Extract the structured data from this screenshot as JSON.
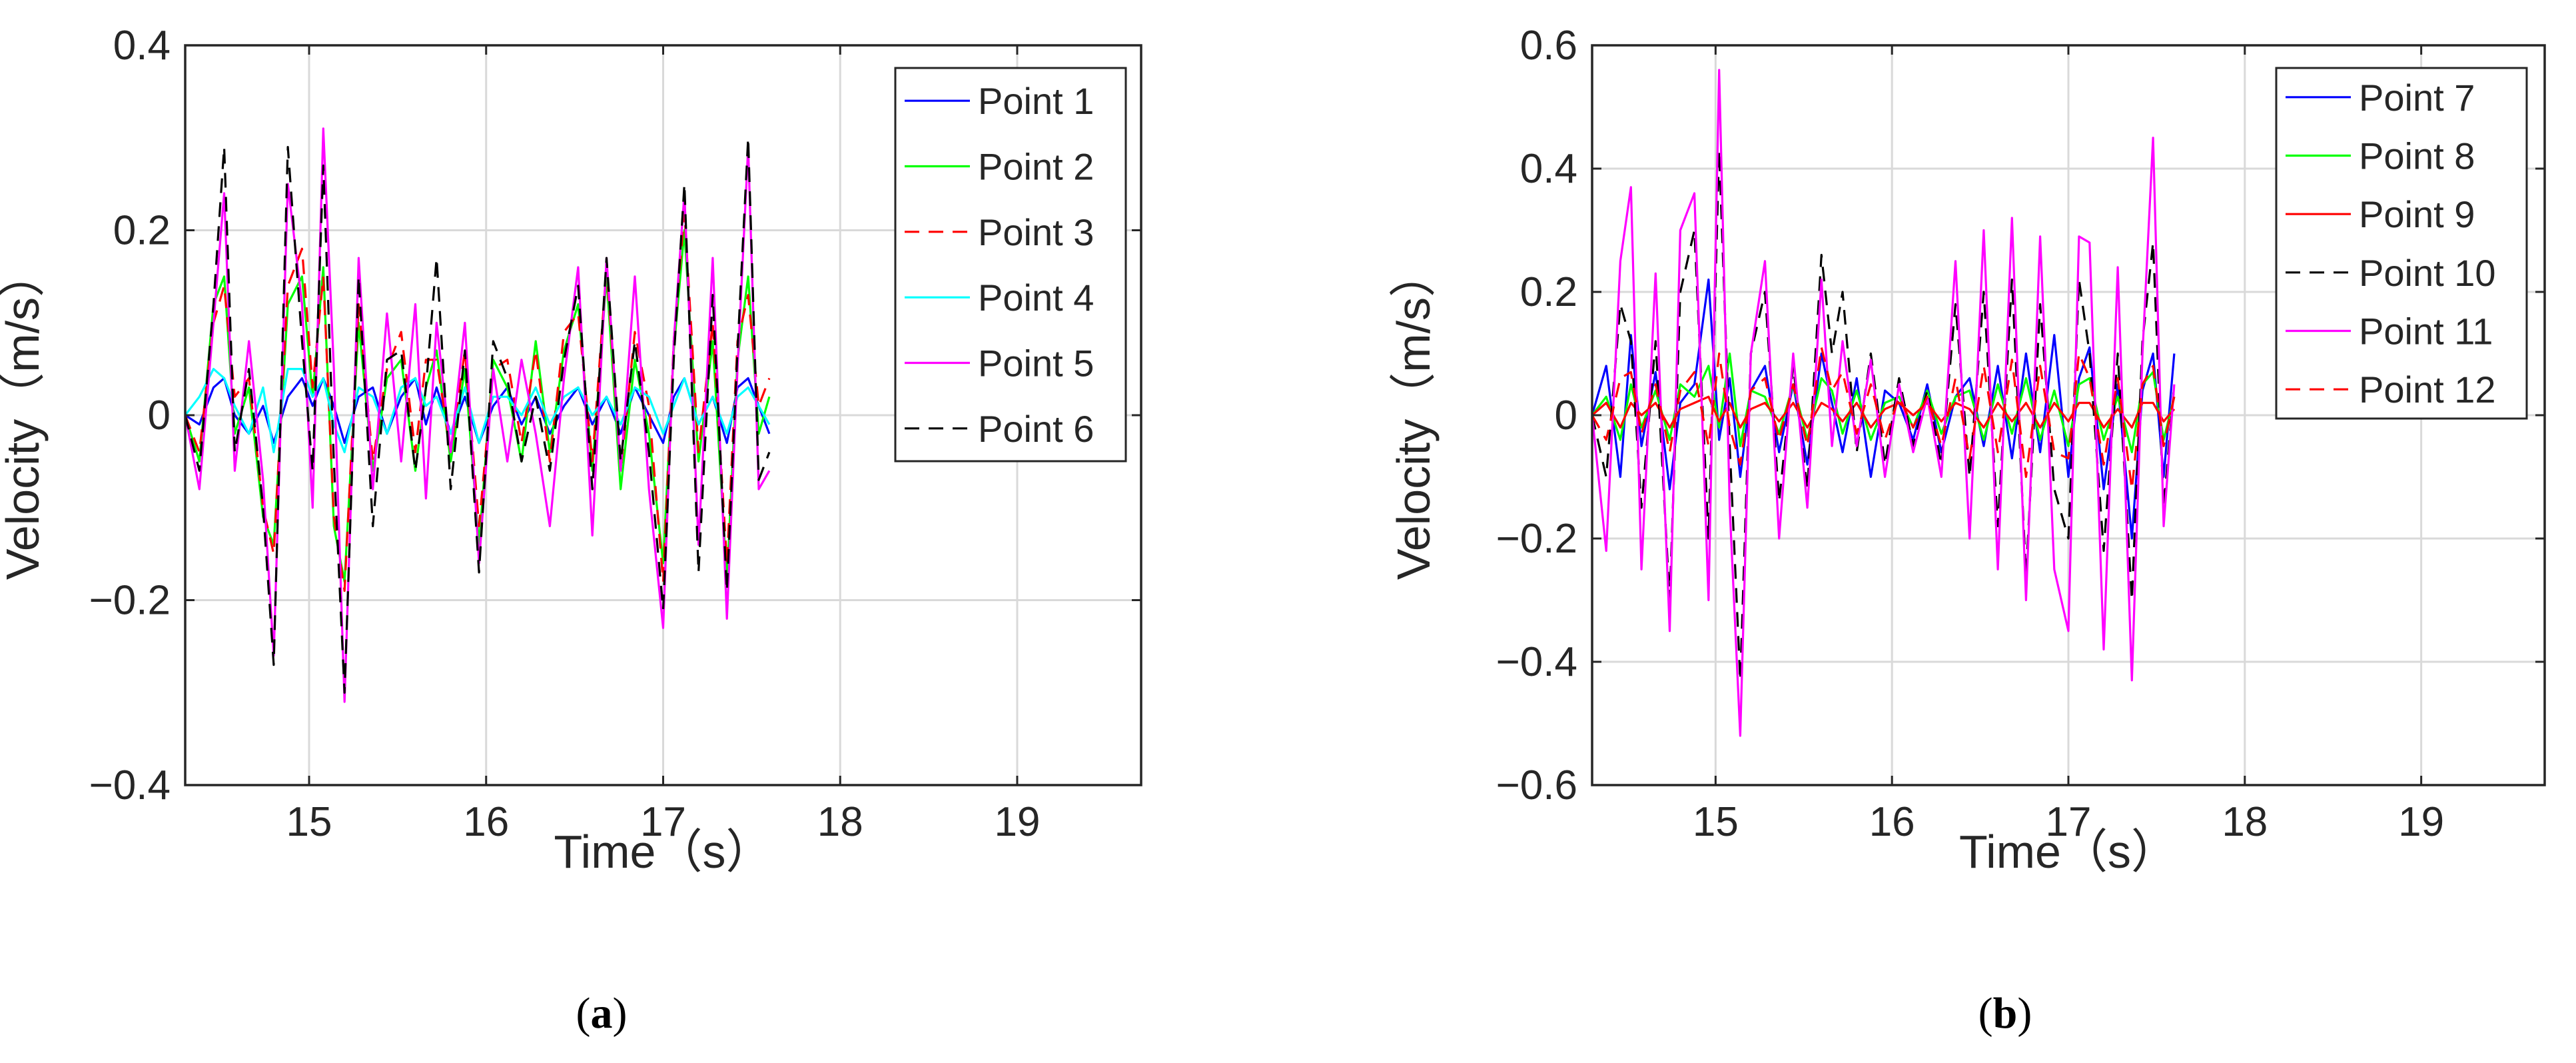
{
  "chart_data": [
    {
      "type": "line",
      "panel_label": "a",
      "xlabel": "Time（s）",
      "ylabel": "Velocity（m/s）",
      "xlim": [
        14.3,
        19.7
      ],
      "ylim": [
        -0.4,
        0.4
      ],
      "xticks": [
        "15",
        "16",
        "17",
        "18",
        "19"
      ],
      "xtick_values": [
        15,
        16,
        17,
        18,
        19
      ],
      "yticks": [
        "−0.4",
        "−0.2",
        "0",
        "0.2",
        "0.4"
      ],
      "ytick_values": [
        -0.4,
        -0.2,
        0,
        0.2,
        0.4
      ],
      "grid": true,
      "legend_position": "top-right",
      "x": [
        14.3,
        14.38,
        14.46,
        14.52,
        14.58,
        14.66,
        14.74,
        14.8,
        14.88,
        14.96,
        15.02,
        15.08,
        15.14,
        15.2,
        15.28,
        15.36,
        15.44,
        15.52,
        15.6,
        15.66,
        15.72,
        15.8,
        15.88,
        15.96,
        16.04,
        16.12,
        16.2,
        16.28,
        16.36,
        16.44,
        16.52,
        16.6,
        16.68,
        16.76,
        16.84,
        16.92,
        17.0,
        17.06,
        17.12,
        17.2,
        17.28,
        17.36,
        17.42,
        17.48,
        17.54,
        17.6
      ],
      "series": [
        {
          "name": "Point 1",
          "color": "#0000ff",
          "dash": "solid",
          "values": [
            0,
            -0.01,
            0.03,
            0.04,
            0,
            -0.02,
            0.01,
            -0.03,
            0.02,
            0.04,
            0.01,
            0.04,
            0.01,
            -0.03,
            0.02,
            0.03,
            -0.02,
            0.02,
            0.04,
            -0.01,
            0.03,
            -0.02,
            0.02,
            -0.03,
            0.01,
            0.03,
            -0.01,
            0.02,
            -0.02,
            0.01,
            0.03,
            -0.01,
            0.02,
            -0.02,
            0.03,
            0,
            -0.03,
            0.02,
            0.04,
            -0.01,
            0.02,
            -0.03,
            0.03,
            0.04,
            0.01,
            -0.02
          ]
        },
        {
          "name": "Point 2",
          "color": "#00ff00",
          "dash": "solid",
          "values": [
            0,
            -0.05,
            0.12,
            0.15,
            -0.02,
            0.03,
            -0.11,
            -0.14,
            0.12,
            0.15,
            0.02,
            0.16,
            -0.12,
            -0.18,
            0.1,
            -0.06,
            0.04,
            0.06,
            -0.06,
            0.03,
            0.07,
            -0.05,
            0.05,
            -0.14,
            0.06,
            0.03,
            -0.05,
            0.08,
            -0.04,
            0.07,
            0.12,
            -0.06,
            0.15,
            -0.08,
            0.06,
            -0.02,
            -0.16,
            0.07,
            0.2,
            -0.05,
            0.08,
            -0.18,
            0.06,
            0.15,
            -0.02,
            0.02
          ]
        },
        {
          "name": "Point 3",
          "color": "#ff0000",
          "dash": "dashed",
          "values": [
            0,
            -0.04,
            0.1,
            0.14,
            0.02,
            0.04,
            -0.1,
            -0.15,
            0.14,
            0.18,
            0.03,
            0.15,
            -0.11,
            -0.19,
            0.12,
            -0.05,
            0.05,
            0.09,
            -0.04,
            0.06,
            0.06,
            -0.04,
            0.07,
            -0.12,
            0.05,
            0.06,
            -0.03,
            0.07,
            -0.05,
            0.09,
            0.11,
            -0.05,
            0.16,
            -0.06,
            0.09,
            0.01,
            -0.18,
            0.08,
            0.22,
            -0.04,
            0.1,
            -0.16,
            0.08,
            0.13,
            0.01,
            0.04
          ]
        },
        {
          "name": "Point 4",
          "color": "#00ffff",
          "dash": "solid",
          "values": [
            0,
            0.02,
            0.05,
            0.04,
            0.01,
            -0.02,
            0.03,
            -0.04,
            0.05,
            0.05,
            0.02,
            0.04,
            -0.01,
            -0.04,
            0.03,
            0.02,
            -0.02,
            0.03,
            0.04,
            0.01,
            0.02,
            -0.02,
            0.03,
            -0.03,
            0.02,
            0.02,
            0,
            0.03,
            -0.01,
            0.02,
            0.03,
            0,
            0.02,
            -0.01,
            0.03,
            0.02,
            -0.02,
            0.01,
            0.04,
            -0.01,
            0.02,
            -0.02,
            0.02,
            0.03,
            0.01,
            -0.01
          ]
        },
        {
          "name": "Point 5",
          "color": "#ff00ff",
          "dash": "solid",
          "values": [
            0,
            -0.08,
            0.1,
            0.24,
            -0.06,
            0.08,
            -0.07,
            -0.26,
            0.25,
            0.12,
            -0.1,
            0.31,
            0.05,
            -0.31,
            0.17,
            -0.08,
            0.11,
            -0.05,
            0.12,
            -0.09,
            0.1,
            -0.04,
            0.1,
            -0.16,
            0.05,
            -0.05,
            0.06,
            -0.02,
            -0.12,
            0.04,
            0.16,
            -0.13,
            0.17,
            -0.06,
            0.15,
            -0.08,
            -0.23,
            0.08,
            0.24,
            -0.14,
            0.17,
            -0.22,
            0.05,
            0.29,
            -0.08,
            -0.06
          ]
        },
        {
          "name": "Point 6",
          "color": "#000000",
          "dash": "dashed",
          "values": [
            0,
            -0.06,
            0.12,
            0.29,
            -0.04,
            0.05,
            -0.1,
            -0.27,
            0.29,
            0.08,
            -0.06,
            0.27,
            -0.05,
            -0.3,
            0.15,
            -0.12,
            0.06,
            0.07,
            -0.06,
            0.03,
            0.17,
            -0.08,
            0.07,
            -0.17,
            0.08,
            0.04,
            -0.05,
            0.02,
            -0.06,
            0.06,
            0.14,
            -0.08,
            0.17,
            -0.05,
            0.08,
            -0.04,
            -0.21,
            0.06,
            0.25,
            -0.17,
            0.13,
            -0.19,
            0.07,
            0.3,
            -0.07,
            -0.04
          ]
        }
      ]
    },
    {
      "type": "line",
      "panel_label": "b",
      "xlabel": "Time（s）",
      "ylabel": "Velocity（m/s）",
      "xlim": [
        14.3,
        19.7
      ],
      "ylim": [
        -0.6,
        0.6
      ],
      "xticks": [
        "15",
        "16",
        "17",
        "18",
        "19"
      ],
      "xtick_values": [
        15,
        16,
        17,
        18,
        19
      ],
      "yticks": [
        "−0.6",
        "−0.4",
        "−0.2",
        "0",
        "0.2",
        "0.4",
        "0.6"
      ],
      "ytick_values": [
        -0.6,
        -0.4,
        -0.2,
        0,
        0.2,
        0.4,
        0.6
      ],
      "grid": true,
      "legend_position": "top-right",
      "x": [
        14.3,
        14.38,
        14.46,
        14.52,
        14.58,
        14.66,
        14.74,
        14.8,
        14.88,
        14.96,
        15.02,
        15.08,
        15.14,
        15.2,
        15.28,
        15.36,
        15.44,
        15.52,
        15.6,
        15.66,
        15.72,
        15.8,
        15.88,
        15.96,
        16.04,
        16.12,
        16.2,
        16.28,
        16.36,
        16.44,
        16.52,
        16.6,
        16.68,
        16.76,
        16.84,
        16.92,
        17.0,
        17.06,
        17.12,
        17.2,
        17.28,
        17.36,
        17.42,
        17.48,
        17.54,
        17.6
      ],
      "series": [
        {
          "name": "Point 7",
          "color": "#0000ff",
          "dash": "solid",
          "values": [
            0,
            0.08,
            -0.1,
            0.13,
            -0.05,
            0.07,
            -0.12,
            0.02,
            0.05,
            0.22,
            -0.04,
            0.06,
            -0.1,
            0.04,
            0.08,
            -0.06,
            0.05,
            -0.08,
            0.1,
            0.02,
            -0.06,
            0.06,
            -0.1,
            0.04,
            0.02,
            -0.04,
            0.05,
            -0.06,
            0.03,
            0.06,
            -0.05,
            0.08,
            -0.07,
            0.1,
            -0.06,
            0.13,
            -0.1,
            0.06,
            0.11,
            -0.12,
            0.05,
            -0.2,
            0.04,
            0.1,
            -0.1,
            0.1
          ]
        },
        {
          "name": "Point 8",
          "color": "#00ff00",
          "dash": "solid",
          "values": [
            0,
            0.03,
            -0.04,
            0.05,
            -0.02,
            0.04,
            -0.04,
            0.05,
            0.03,
            0.08,
            -0.02,
            0.1,
            -0.05,
            0.04,
            0.03,
            -0.03,
            0.05,
            -0.04,
            0.06,
            0.04,
            -0.03,
            0.04,
            -0.04,
            0.02,
            0.03,
            -0.02,
            0.04,
            -0.03,
            0.03,
            0.04,
            -0.04,
            0.05,
            -0.03,
            0.06,
            -0.04,
            0.04,
            -0.05,
            0.05,
            0.06,
            -0.04,
            0.03,
            -0.06,
            0.05,
            0.07,
            -0.04,
            0.03
          ]
        },
        {
          "name": "Point 9",
          "color": "#ff0000",
          "dash": "solid",
          "values": [
            0,
            0.02,
            -0.02,
            0.02,
            0,
            0.02,
            -0.02,
            0.01,
            0.02,
            0.03,
            -0.01,
            0.02,
            -0.02,
            0.01,
            0.02,
            -0.01,
            0.02,
            -0.02,
            0.02,
            0.01,
            -0.01,
            0.02,
            -0.02,
            0.01,
            0.02,
            0,
            0.02,
            -0.01,
            0.02,
            0.01,
            -0.02,
            0.02,
            -0.01,
            0.02,
            -0.02,
            0.02,
            -0.01,
            0.02,
            0.02,
            -0.02,
            0.01,
            -0.02,
            0.02,
            0.02,
            -0.01,
            0.01
          ]
        },
        {
          "name": "Point 10",
          "color": "#000000",
          "dash": "dashed",
          "values": [
            0,
            -0.1,
            0.18,
            0.12,
            -0.15,
            0.12,
            -0.3,
            0.2,
            0.3,
            -0.2,
            0.43,
            -0.05,
            -0.43,
            0.1,
            0.2,
            -0.14,
            0.08,
            -0.12,
            0.26,
            0.1,
            0.2,
            -0.06,
            0.1,
            -0.08,
            0.06,
            -0.05,
            0.04,
            -0.08,
            0.18,
            -0.1,
            0.2,
            -0.18,
            0.22,
            -0.26,
            0.18,
            -0.12,
            -0.2,
            0.22,
            0.1,
            -0.22,
            0.1,
            -0.3,
            0.12,
            0.28,
            -0.15,
            0.05
          ]
        },
        {
          "name": "Point 11",
          "color": "#ff00ff",
          "dash": "solid",
          "values": [
            0,
            -0.22,
            0.25,
            0.37,
            -0.25,
            0.23,
            -0.35,
            0.3,
            0.36,
            -0.3,
            0.56,
            -0.15,
            -0.52,
            0.1,
            0.25,
            -0.2,
            0.1,
            -0.15,
            0.22,
            -0.05,
            0.12,
            -0.05,
            0.09,
            -0.1,
            0.05,
            -0.06,
            0.03,
            -0.1,
            0.25,
            -0.2,
            0.3,
            -0.25,
            0.32,
            -0.3,
            0.29,
            -0.25,
            -0.35,
            0.29,
            0.28,
            -0.38,
            0.24,
            -0.43,
            0.1,
            0.45,
            -0.18,
            0.05
          ]
        },
        {
          "name": "Point 12",
          "color": "#ff0000",
          "dash": "dashed",
          "values": [
            0,
            -0.04,
            0.06,
            0.07,
            -0.03,
            0.05,
            -0.06,
            0.04,
            0.07,
            -0.05,
            0.1,
            -0.02,
            -0.08,
            0.04,
            0.06,
            -0.04,
            0.05,
            -0.05,
            0.11,
            0.04,
            0.07,
            -0.03,
            0.05,
            -0.04,
            0.03,
            -0.02,
            0.03,
            -0.05,
            0.06,
            -0.07,
            0.08,
            -0.06,
            0.09,
            -0.1,
            0.08,
            -0.06,
            -0.07,
            0.1,
            0.06,
            -0.08,
            0.06,
            -0.12,
            0.05,
            0.08,
            -0.05,
            0.03
          ]
        }
      ]
    }
  ],
  "captions": {
    "a": {
      "open": "(",
      "letter": "a",
      "close": ")"
    },
    "b": {
      "open": "(",
      "letter": "b",
      "close": ")"
    }
  }
}
